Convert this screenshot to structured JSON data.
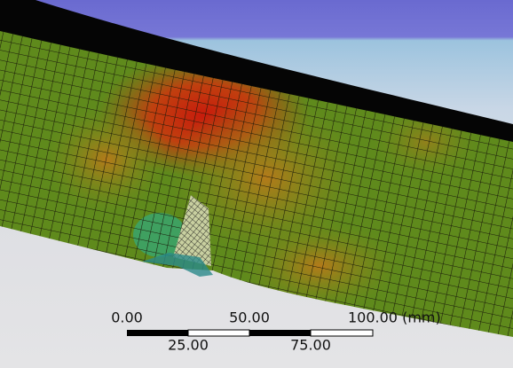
{
  "scale_bar": {
    "top_labels": [
      "0.00",
      "50.00",
      "100.00 (mm)"
    ],
    "bottom_labels": [
      "25.00",
      "75.00"
    ]
  }
}
